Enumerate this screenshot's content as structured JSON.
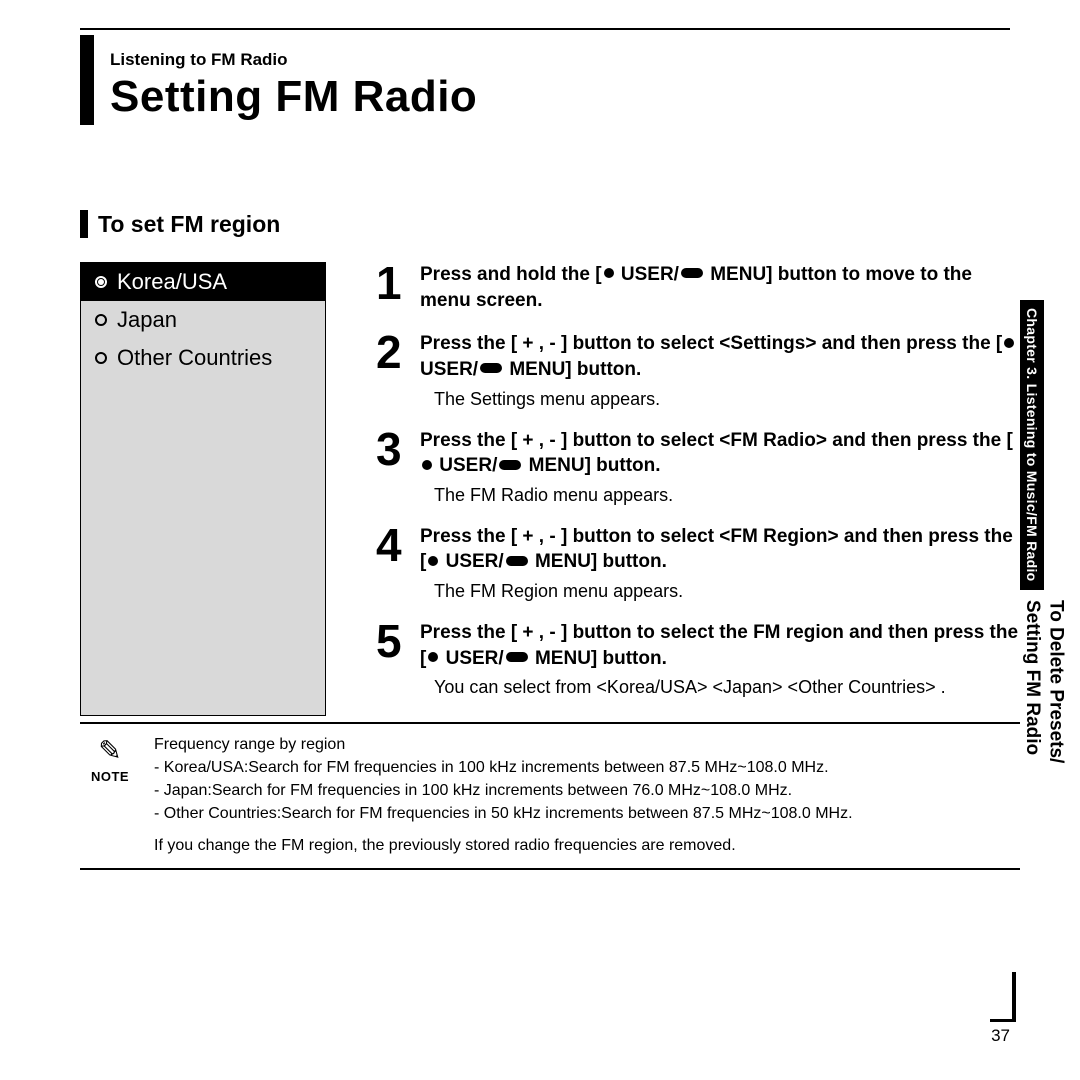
{
  "header": {
    "breadcrumb": "Listening to FM Radio",
    "title": "Setting FM Radio"
  },
  "section": {
    "title": "To set FM region"
  },
  "menu": {
    "items": [
      {
        "label": "Korea/USA",
        "selected": true
      },
      {
        "label": "Japan",
        "selected": false
      },
      {
        "label": "Other Countries",
        "selected": false
      }
    ]
  },
  "steps": [
    {
      "num": "1",
      "main_pre": "Press and hold the [",
      "main_mid": " USER/",
      "main_post": " MENU] button to move to the menu screen.",
      "note": ""
    },
    {
      "num": "2",
      "main_pre": "Press the [ + , - ] button to select <Settings> and then press the [",
      "main_mid": " USER/",
      "main_post": " MENU] button.",
      "note": "The Settings menu appears."
    },
    {
      "num": "3",
      "main_pre": "Press the [ + , - ] button to select  <FM Radio> and then press the [",
      "main_mid": " USER/",
      "main_post": " MENU] button.",
      "note": "The FM Radio menu appears."
    },
    {
      "num": "4",
      "main_pre": "Press the [ + , - ] button to select <FM Region> and then press the [",
      "main_mid": " USER/",
      "main_post": " MENU] button.",
      "note": "The FM Region menu appears."
    },
    {
      "num": "5",
      "main_pre": "Press the [ + , - ] button to select the FM region and then press the [",
      "main_mid": " USER/",
      "main_post": " MENU] button.",
      "note": "You can select from <Korea/USA> <Japan> <Other Countries> ."
    }
  ],
  "notebox": {
    "label": "NOTE",
    "lines": [
      "Frequency range by region",
      "- Korea/USA:Search for FM frequencies in 100 kHz increments  between 87.5 MHz~108.0 MHz.",
      "- Japan:Search for FM frequencies in 100 kHz increments between 76.0 MHz~108.0 MHz.",
      "- Other Countries:Search for FM frequencies in 50 kHz increments between 87.5 MHz~108.0 MHz."
    ],
    "footer": "If you change the FM region, the previously stored radio frequencies are removed."
  },
  "sidebar": {
    "chapter": "Chapter 3.  Listening to Music/FM Radio",
    "sub1": "To Delete Presets/",
    "sub2": "Setting FM Radio"
  },
  "page_number": "37"
}
